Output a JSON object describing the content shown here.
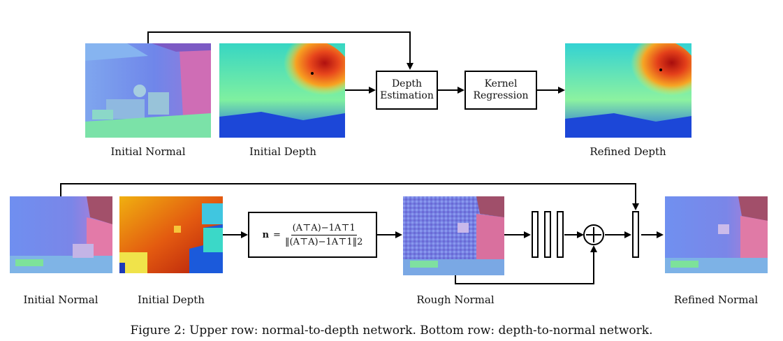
{
  "top_row": {
    "initial_normal_label": "Initial Normal",
    "initial_depth_label": "Initial Depth",
    "depth_estimation_line1": "Depth",
    "depth_estimation_line2": "Estimation",
    "kernel_regression_line1": "Kernel",
    "kernel_regression_line2": "Regression",
    "refined_depth_label": "Refined Depth"
  },
  "bottom_row": {
    "initial_normal_label": "Initial Normal",
    "initial_depth_label": "Initial Depth",
    "formula": {
      "lhs": "n",
      "equals": "=",
      "numerator": "(A⊤A)−1A⊤1",
      "denominator": "‖(A⊤A)−1A⊤1‖2"
    },
    "rough_normal_label": "Rough Normal",
    "refined_normal_label": "Refined Normal"
  },
  "caption": "Figure 2: Upper row: normal-to-depth network. Bottom row: depth-to-normal network."
}
